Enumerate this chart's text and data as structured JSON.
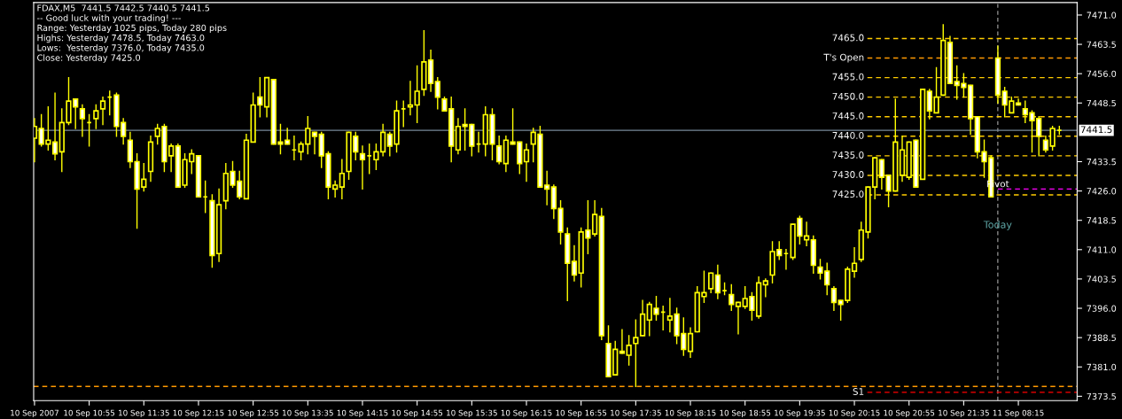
{
  "chart_data": {
    "type": "candlestick",
    "title": "FDAX,M5  7441.5 7442.5 7440.5 7441.5",
    "annotations": [
      "-- Good luck with your trading! ---",
      "Range: Yesterday 1025 pips, Today 280 pips",
      "Highs: Yesterday 7478.5, Today 7463.0",
      "Lows:  Yesterday 7376.0, Today 7435.0",
      "Close: Yesterday 7425.0",
      "Today"
    ],
    "color": "#ffff00",
    "categories": [
      "10 Sep 2007",
      null,
      null,
      null,
      null,
      null,
      null,
      null,
      "10 Sep 10:55",
      null,
      null,
      null,
      null,
      null,
      null,
      null,
      "10 Sep 11:35",
      null,
      null,
      null,
      null,
      null,
      null,
      null,
      "10 Sep 12:15",
      null,
      null,
      null,
      null,
      null,
      null,
      null,
      "10 Sep 12:55",
      null,
      null,
      null,
      null,
      null,
      null,
      null,
      "10 Sep 13:35",
      null,
      null,
      null,
      null,
      null,
      null,
      null,
      "10 Sep 14:15",
      null,
      null,
      null,
      null,
      null,
      null,
      null,
      "10 Sep 14:55",
      null,
      null,
      null,
      null,
      null,
      null,
      null,
      "10 Sep 15:35",
      null,
      null,
      null,
      null,
      null,
      null,
      null,
      "10 Sep 16:15",
      null,
      null,
      null,
      null,
      null,
      null,
      null,
      "10 Sep 16:55",
      null,
      null,
      null,
      null,
      null,
      null,
      null,
      "10 Sep 17:35",
      null,
      null,
      null,
      null,
      null,
      null,
      null,
      "10 Sep 18:15",
      null,
      null,
      null,
      null,
      null,
      null,
      null,
      "10 Sep 18:55",
      null,
      null,
      null,
      null,
      null,
      null,
      null,
      "10 Sep 19:35",
      null,
      null,
      null,
      null,
      null,
      null,
      null,
      "10 Sep 20:15",
      null,
      null,
      null,
      null,
      null,
      null,
      null,
      "10 Sep 20:55",
      null,
      null,
      null,
      null,
      null,
      null,
      null,
      "10 Sep 21:35",
      null,
      null,
      null,
      null,
      null,
      null,
      null,
      "11 Sep 08:15",
      null,
      null,
      null,
      null,
      null,
      null
    ],
    "ohlc": [
      [
        7439.5,
        7444.5,
        7433.5,
        7442.5
      ],
      [
        7442,
        7445.5,
        7437.5,
        7438
      ],
      [
        7438,
        7447.5,
        7436.5,
        7439
      ],
      [
        7438.5,
        7451,
        7434,
        7435.5
      ],
      [
        7436,
        7447,
        7431,
        7443.5
      ],
      [
        7443.5,
        7455,
        7443,
        7449
      ],
      [
        7449.5,
        7449.5,
        7442,
        7447.5
      ],
      [
        7447,
        7448,
        7440,
        7444.5
      ],
      [
        7443.5,
        7445.5,
        7437.5,
        7443.5
      ],
      [
        7444.5,
        7448,
        7442,
        7446.5
      ],
      [
        7447,
        7450,
        7443,
        7449
      ],
      [
        7450,
        7451.5,
        7445.5,
        7450
      ],
      [
        7450.5,
        7451,
        7440,
        7442.5
      ],
      [
        7443.5,
        7444.5,
        7438,
        7440
      ],
      [
        7439,
        7441,
        7432,
        7433.5
      ],
      [
        7433.5,
        7435.5,
        7416.5,
        7426.5
      ],
      [
        7427,
        7433,
        7426,
        7429
      ],
      [
        7431,
        7440,
        7428.5,
        7438.5
      ],
      [
        7440,
        7443,
        7438,
        7442
      ],
      [
        7442.5,
        7443,
        7431,
        7433.5
      ],
      [
        7435,
        7438,
        7431,
        7437.5
      ],
      [
        7437.5,
        7438,
        7427,
        7427
      ],
      [
        7427.5,
        7435.5,
        7427,
        7434
      ],
      [
        7433.5,
        7436.5,
        7430.5,
        7435.5
      ],
      [
        7435,
        7435,
        7424.5,
        7424.5
      ],
      [
        7424.5,
        7428.5,
        7420.5,
        7424.5
      ],
      [
        7423.5,
        7425,
        7406.5,
        7409.5
      ],
      [
        7410,
        7426.5,
        7408,
        7422.5
      ],
      [
        7423.5,
        7433,
        7421.5,
        7430.5
      ],
      [
        7431,
        7433.5,
        7427,
        7427.5
      ],
      [
        7428.5,
        7431,
        7424,
        7424.5
      ],
      [
        7424,
        7440.5,
        7424,
        7439
      ],
      [
        7438.5,
        7451,
        7438.5,
        7448
      ],
      [
        7450,
        7455,
        7445,
        7448
      ],
      [
        7447.5,
        7455,
        7445,
        7455
      ],
      [
        7454.5,
        7454.5,
        7438,
        7438
      ],
      [
        7438.5,
        7443,
        7435.5,
        7438
      ],
      [
        7439,
        7442,
        7438,
        7438
      ],
      [
        7436.5,
        7440,
        7434,
        7436.5
      ],
      [
        7436,
        7438.5,
        7434,
        7438
      ],
      [
        7438,
        7445,
        7435.5,
        7442
      ],
      [
        7441,
        7441,
        7435.5,
        7440
      ],
      [
        7440.5,
        7441,
        7432,
        7435
      ],
      [
        7435.5,
        7436,
        7424,
        7427
      ],
      [
        7426.5,
        7428.5,
        7424.5,
        7427.5
      ],
      [
        7427,
        7434,
        7424,
        7430.5
      ],
      [
        7431,
        7441,
        7429,
        7441
      ],
      [
        7440,
        7441,
        7434,
        7436
      ],
      [
        7435.5,
        7437.5,
        7426.5,
        7434
      ],
      [
        7435,
        7438,
        7430.5,
        7435
      ],
      [
        7434,
        7438,
        7431.5,
        7436
      ],
      [
        7436,
        7443,
        7435,
        7441
      ],
      [
        7440.5,
        7441,
        7435,
        7437.5
      ],
      [
        7438,
        7449,
        7436,
        7446.5
      ],
      [
        7447,
        7449,
        7442.5,
        7447
      ],
      [
        7447.5,
        7454,
        7445.5,
        7448
      ],
      [
        7448,
        7458,
        7443.5,
        7451.5
      ],
      [
        7452,
        7467,
        7450.5,
        7459
      ],
      [
        7459.5,
        7462,
        7451.5,
        7453.5
      ],
      [
        7454,
        7455,
        7447,
        7450
      ],
      [
        7449.5,
        7450,
        7446.5,
        7446.5
      ],
      [
        7447,
        7450,
        7433.5,
        7437.5
      ],
      [
        7436.5,
        7444.5,
        7435.5,
        7442.5
      ],
      [
        7443,
        7447,
        7436.5,
        7442.5
      ],
      [
        7443,
        7443,
        7435,
        7437.5
      ],
      [
        7438,
        7441,
        7436,
        7438
      ],
      [
        7438,
        7447.5,
        7435,
        7445.5
      ],
      [
        7445.5,
        7447,
        7434,
        7438
      ],
      [
        7437.5,
        7440,
        7433,
        7433.5
      ],
      [
        7433,
        7440,
        7431,
        7439
      ],
      [
        7438.5,
        7447,
        7438,
        7438
      ],
      [
        7438.5,
        7438.5,
        7430.5,
        7433
      ],
      [
        7433.5,
        7438,
        7428.5,
        7436.5
      ],
      [
        7438,
        7442,
        7433.5,
        7441
      ],
      [
        7440.5,
        7442.5,
        7427,
        7427
      ],
      [
        7427.5,
        7431,
        7422.5,
        7426.5
      ],
      [
        7427,
        7427.5,
        7419,
        7421.5
      ],
      [
        7421.5,
        7423.5,
        7412.5,
        7415.5
      ],
      [
        7415,
        7416.5,
        7398,
        7407.5
      ],
      [
        7408,
        7412,
        7403,
        7404.5
      ],
      [
        7405,
        7416.5,
        7401.5,
        7415.5
      ],
      [
        7416,
        7423.5,
        7410,
        7414
      ],
      [
        7415,
        7423.5,
        7414.5,
        7420
      ],
      [
        7419.5,
        7421.5,
        7388,
        7389
      ],
      [
        7387,
        7391.5,
        7378.5,
        7378.5
      ],
      [
        7379,
        7387.5,
        7379,
        7385.5
      ],
      [
        7385,
        7390.5,
        7384.5,
        7384.5
      ],
      [
        7384,
        7389,
        7381.5,
        7386.5
      ],
      [
        7387,
        7393,
        7376,
        7388.5
      ],
      [
        7389,
        7398,
        7389,
        7394.5
      ],
      [
        7393,
        7397.5,
        7389,
        7397
      ],
      [
        7396,
        7399,
        7393,
        7394.5
      ],
      [
        7395,
        7396.5,
        7390.5,
        7395
      ],
      [
        7393,
        7398.5,
        7390,
        7394
      ],
      [
        7394.5,
        7396,
        7387,
        7389
      ],
      [
        7389.5,
        7393.5,
        7384,
        7385.5
      ],
      [
        7385,
        7391,
        7383.5,
        7389.5
      ],
      [
        7390,
        7401.5,
        7390,
        7400
      ],
      [
        7399,
        7405.5,
        7397.5,
        7400
      ],
      [
        7401,
        7405,
        7400,
        7405
      ],
      [
        7404.5,
        7407,
        7398.5,
        7400
      ],
      [
        7400.5,
        7402.5,
        7399.5,
        7400.5
      ],
      [
        7399.5,
        7402,
        7395.5,
        7397
      ],
      [
        7396.5,
        7397.5,
        7389.5,
        7397.5
      ],
      [
        7396.5,
        7401.5,
        7396,
        7398.5
      ],
      [
        7399,
        7400,
        7393,
        7395.5
      ],
      [
        7394,
        7404,
        7393.5,
        7402.5
      ],
      [
        7402,
        7403.5,
        7399,
        7403
      ],
      [
        7404.5,
        7413,
        7402.5,
        7410.5
      ],
      [
        7411,
        7413,
        7408.5,
        7409.5
      ],
      [
        7410,
        7411,
        7406,
        7410
      ],
      [
        7409,
        7417.5,
        7408.5,
        7417.5
      ],
      [
        7419,
        7419.5,
        7412.5,
        7414.5
      ],
      [
        7413.5,
        7418,
        7412,
        7414.5
      ],
      [
        7413.5,
        7414.5,
        7405,
        7407
      ],
      [
        7406.5,
        7408.5,
        7403.5,
        7405
      ],
      [
        7405.5,
        7407.5,
        7399.5,
        7402
      ],
      [
        7401,
        7401.5,
        7395.5,
        7397.5
      ],
      [
        7398,
        7398,
        7393,
        7397
      ],
      [
        7398,
        7406.5,
        7397.5,
        7406
      ],
      [
        7405.5,
        7411.5,
        7404,
        7407.5
      ],
      [
        7408.5,
        7418,
        7408,
        7416
      ],
      [
        7415.5,
        7427,
        7414,
        7427
      ],
      [
        7427,
        7434.5,
        7424,
        7434.5
      ],
      [
        7434,
        7434,
        7426.5,
        7429.5
      ],
      [
        7430,
        7430,
        7422,
        7426
      ],
      [
        7426,
        7449.5,
        7426,
        7438.5
      ],
      [
        7430,
        7440,
        7428.5,
        7436.5
      ],
      [
        7429.5,
        7438.5,
        7429,
        7438.5
      ],
      [
        7439,
        7439,
        7427,
        7427
      ],
      [
        7429,
        7452,
        7429,
        7452
      ],
      [
        7451.5,
        7452,
        7444.5,
        7446.5
      ],
      [
        7446,
        7457.5,
        7446,
        7450
      ],
      [
        7450.5,
        7468.5,
        7450.5,
        7464.5
      ],
      [
        7464,
        7465.5,
        7453.5,
        7453.5
      ],
      [
        7454,
        7458,
        7449.5,
        7453
      ],
      [
        7453.5,
        7456,
        7450,
        7452.5
      ],
      [
        7453,
        7453,
        7440.5,
        7444.5
      ],
      [
        7445,
        7445,
        7434.5,
        7436
      ],
      [
        7436,
        7439,
        7429.5,
        7433.5
      ],
      [
        7434.5,
        7435,
        7424.5,
        7424.5
      ],
      [
        7460,
        7463,
        7448.5,
        7450.5
      ],
      [
        7451.5,
        7452.5,
        7445,
        7448
      ],
      [
        7446,
        7450,
        7446,
        7449
      ],
      [
        7448.5,
        7449.5,
        7448,
        7448
      ],
      [
        7447,
        7449,
        7443.5,
        7445.5
      ],
      [
        7446,
        7446.5,
        7436,
        7444
      ],
      [
        7444.5,
        7445,
        7435,
        7440
      ],
      [
        7439,
        7440,
        7436,
        7436.5
      ],
      [
        7437.5,
        7442.5,
        7436.5,
        7442
      ],
      [
        7441.5,
        7442.5,
        7440.5,
        7441.5
      ]
    ],
    "ylim": [
      7372.4,
      7474.2
    ],
    "yticks": [
      {
        "value": 7471,
        "label": "7471.0"
      },
      {
        "value": 7463.5,
        "label": "7463.5"
      },
      {
        "value": 7456,
        "label": "7456.0"
      },
      {
        "value": 7448.5,
        "label": "7448.5"
      },
      {
        "value": 7433.5,
        "label": "7433.5"
      },
      {
        "value": 7426,
        "label": "7426.0"
      },
      {
        "value": 7418.5,
        "label": "7418.5"
      },
      {
        "value": 7411,
        "label": "7411.0"
      },
      {
        "value": 7403.5,
        "label": "7403.5"
      },
      {
        "value": 7396,
        "label": "7396.0"
      },
      {
        "value": 7388.5,
        "label": "7388.5"
      },
      {
        "value": 7381,
        "label": "7381.0"
      },
      {
        "value": 7373.5,
        "label": "7373.5"
      }
    ],
    "ref_lines": [
      {
        "axis": "y",
        "value": 7441.5,
        "label": "7441.5",
        "color": "#778899",
        "line_style": "solid"
      },
      {
        "axis": "y",
        "value": 7465,
        "label": "7465.0",
        "color": "#ffcc00",
        "line_style": "dashed"
      },
      {
        "axis": "y",
        "value": 7460,
        "label": "T's Open",
        "color": "#ff9900",
        "line_style": "dashed"
      },
      {
        "axis": "y",
        "value": 7455,
        "label": "7455.0",
        "color": "#ffcc00",
        "line_style": "dashed"
      },
      {
        "axis": "y",
        "value": 7450,
        "label": "7450.0",
        "color": "#ffcc00",
        "line_style": "dashed"
      },
      {
        "axis": "y",
        "value": 7445,
        "label": "7445.0",
        "color": "#ffcc00",
        "line_style": "dashed"
      },
      {
        "axis": "y",
        "value": 7440,
        "label": "7440.0",
        "color": "#ffcc00",
        "line_style": "dashed"
      },
      {
        "axis": "y",
        "value": 7435,
        "label": "7435.0",
        "color": "#ffcc00",
        "line_style": "dashed"
      },
      {
        "axis": "y",
        "value": 7430,
        "label": "7430.0",
        "color": "#ffcc00",
        "line_style": "dashed"
      },
      {
        "axis": "y",
        "value": 7425,
        "label": "7425.0",
        "color": "#ffcc00",
        "line_style": "dashed"
      },
      {
        "axis": "y",
        "value": 7426.5,
        "label": "Pivot",
        "color": "#ff00ff",
        "line_style": "dashed"
      },
      {
        "axis": "y",
        "value": 7376,
        "color": "#ff9900",
        "line_style": "dashed"
      },
      {
        "axis": "y",
        "value": 7374.5,
        "label": "S1",
        "color": "#ff0000",
        "line_style": "dashed"
      }
    ]
  }
}
